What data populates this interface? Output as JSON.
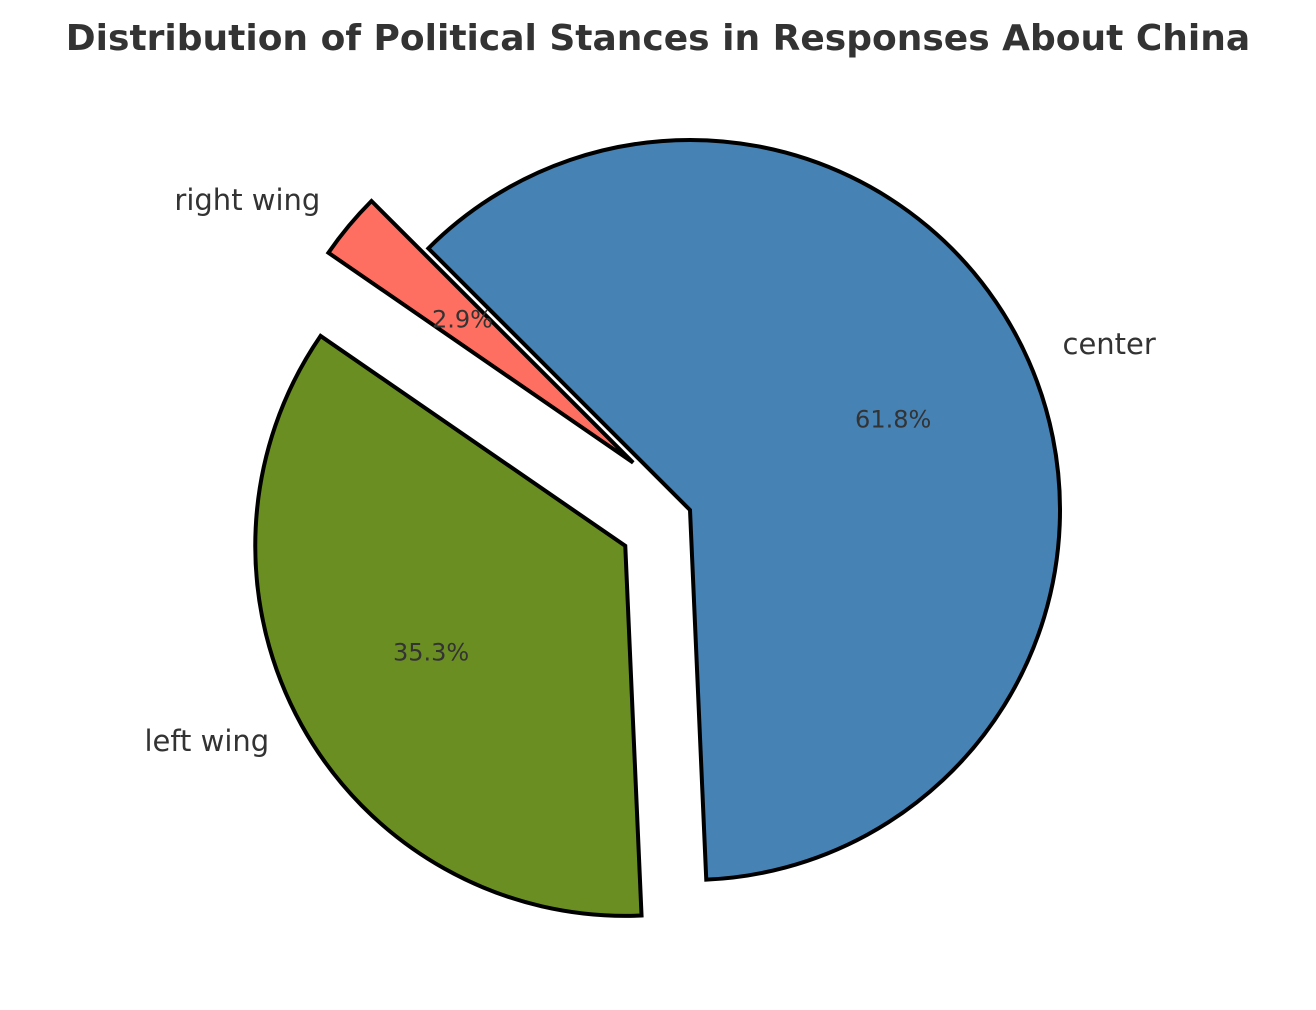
{
  "chart_data": {
    "type": "pie",
    "title": "Distribution of Political Stances in Responses About China",
    "slices": [
      {
        "label": "center",
        "value": 61.8,
        "pct_label": "61.8%",
        "color": "#4682B4",
        "exploded": false
      },
      {
        "label": "left wing",
        "value": 35.3,
        "pct_label": "35.3%",
        "color": "#6B8E23",
        "exploded": true
      },
      {
        "label": "right wing",
        "value": 2.9,
        "pct_label": "2.9%",
        "color": "#FF6F61",
        "exploded": true
      }
    ],
    "start_angle_deg": 135,
    "direction": "clockwise",
    "edge_color": "#000000",
    "legend": "none"
  }
}
